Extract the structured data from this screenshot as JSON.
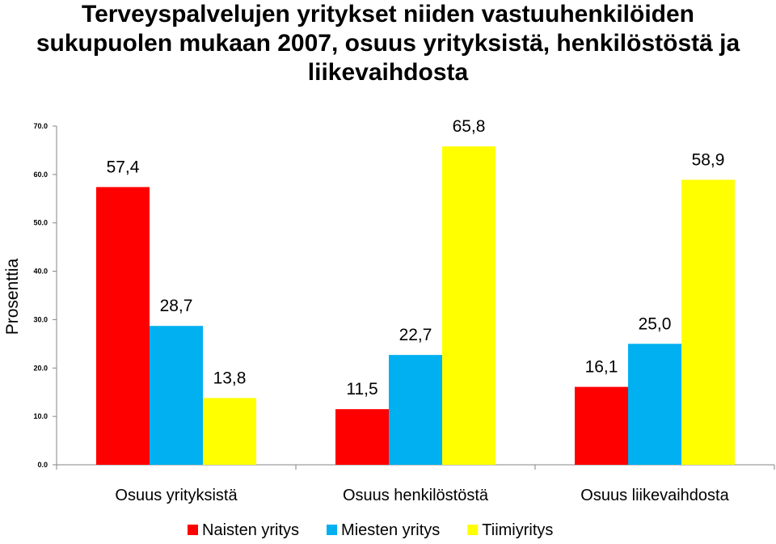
{
  "title": {
    "line1": "Terveyspalvelujen yritykset niiden vastuuhenkilöiden",
    "line2": "sukupuolen mukaan 2007, osuus yrityksistä, henkilöstöstä ja",
    "line3": "liikevaihdosta"
  },
  "chart_data": {
    "type": "bar",
    "title": "Terveyspalvelujen yritykset niiden vastuuhenkilöiden sukupuolen mukaan 2007, osuus yrityksistä, henkilöstöstä ja liikevaihdosta",
    "categories": [
      "Osuus yrityksistä",
      "Osuus henkilöstöstä",
      "Osuus liikevaihdosta"
    ],
    "series": [
      {
        "name": "Naisten yritys",
        "color": "#ff0000",
        "values": [
          57.4,
          11.5,
          16.1
        ],
        "labels": [
          "57,4",
          "11,5",
          "16,1"
        ]
      },
      {
        "name": "Miesten yritys",
        "color": "#00b0f0",
        "values": [
          28.7,
          22.7,
          25.0
        ],
        "labels": [
          "28,7",
          "22,7",
          "25,0"
        ]
      },
      {
        "name": "Tiimiyritys",
        "color": "#ffff00",
        "values": [
          13.8,
          65.8,
          58.9
        ],
        "labels": [
          "13,8",
          "65,8",
          "58,9"
        ]
      }
    ],
    "ylabel": "Prosenttia",
    "xlabel": "",
    "ylim": [
      0,
      70
    ],
    "yticks": [
      0,
      10,
      20,
      30,
      40,
      50,
      60,
      70
    ],
    "ytick_labels": [
      "0.0",
      "10.0",
      "20.0",
      "30.0",
      "40.0",
      "50.0",
      "60.0",
      "70.0"
    ],
    "grid": false,
    "legend": "bottom"
  }
}
